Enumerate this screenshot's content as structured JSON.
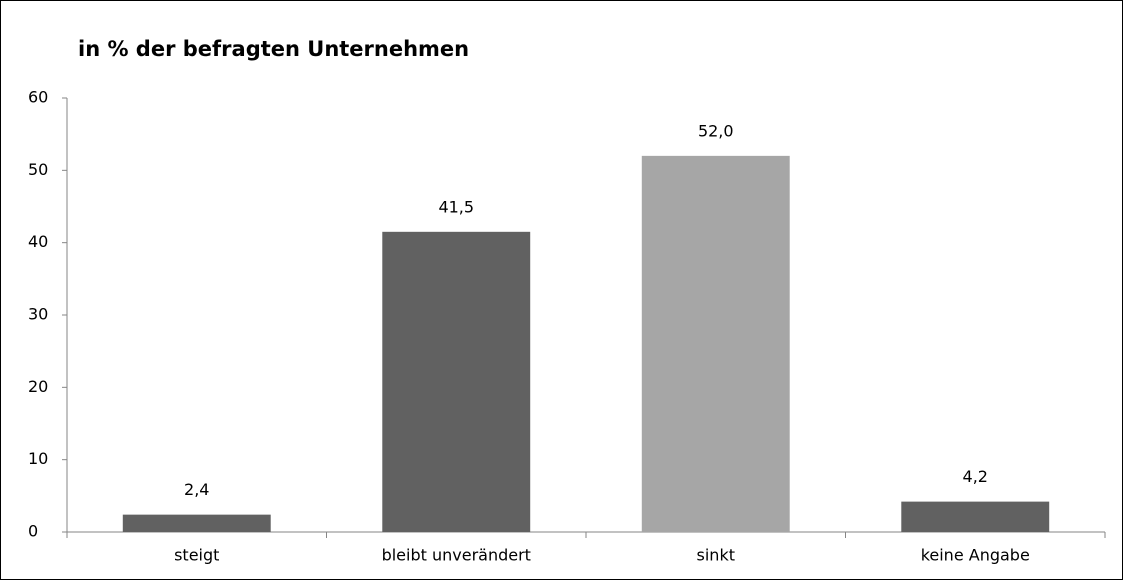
{
  "chart_data": {
    "type": "bar",
    "title": "in % der befragten Unternehmen",
    "categories": [
      "steigt",
      "bleibt unverändert",
      "sinkt",
      "keine Angabe"
    ],
    "values": [
      2.4,
      41.5,
      52.0,
      4.2
    ],
    "value_labels": [
      "2,4",
      "41,5",
      "52,0",
      "4,2"
    ],
    "colors": [
      "#616161",
      "#616161",
      "#a6a6a6",
      "#616161"
    ],
    "ylim": [
      0,
      60
    ],
    "yticks": [
      0,
      10,
      20,
      30,
      40,
      50,
      60
    ],
    "grid": false
  }
}
